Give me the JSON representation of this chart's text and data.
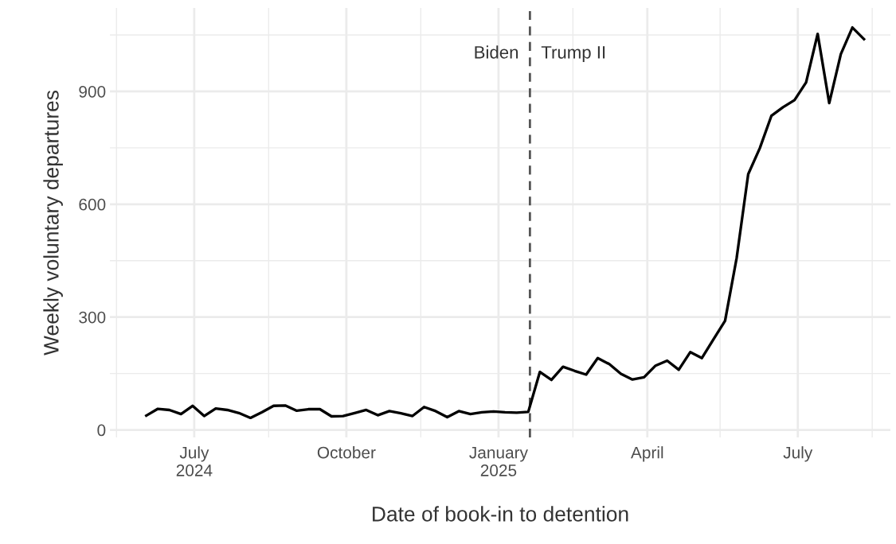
{
  "chart_data": {
    "type": "line",
    "xlabel": "Date of book-in to detention",
    "ylabel": "Weekly voluntary departures",
    "x": [
      "2024-06-02",
      "2024-06-09",
      "2024-06-16",
      "2024-06-23",
      "2024-06-30",
      "2024-07-07",
      "2024-07-14",
      "2024-07-21",
      "2024-07-28",
      "2024-08-04",
      "2024-08-11",
      "2024-08-18",
      "2024-08-25",
      "2024-09-01",
      "2024-09-08",
      "2024-09-15",
      "2024-09-22",
      "2024-09-29",
      "2024-10-06",
      "2024-10-13",
      "2024-10-20",
      "2024-10-27",
      "2024-11-03",
      "2024-11-10",
      "2024-11-17",
      "2024-11-24",
      "2024-12-01",
      "2024-12-08",
      "2024-12-15",
      "2024-12-22",
      "2024-12-29",
      "2025-01-05",
      "2025-01-12",
      "2025-01-19",
      "2025-01-26",
      "2025-02-02",
      "2025-02-09",
      "2025-02-16",
      "2025-02-23",
      "2025-03-02",
      "2025-03-09",
      "2025-03-16",
      "2025-03-23",
      "2025-03-30",
      "2025-04-06",
      "2025-04-13",
      "2025-04-20",
      "2025-04-27",
      "2025-05-04",
      "2025-05-11",
      "2025-05-18",
      "2025-05-25",
      "2025-06-01",
      "2025-06-08",
      "2025-06-15",
      "2025-06-22",
      "2025-06-29",
      "2025-07-06",
      "2025-07-13",
      "2025-07-20",
      "2025-07-27",
      "2025-08-03",
      "2025-08-10"
    ],
    "series": [
      {
        "color": "#000000",
        "values": [
          38,
          56,
          53,
          42,
          64,
          37,
          57,
          53,
          45,
          32,
          47,
          64,
          65,
          51,
          55,
          55,
          36,
          37,
          45,
          53,
          39,
          50,
          44,
          37,
          61,
          50,
          34,
          50,
          42,
          47,
          49,
          47,
          46,
          48,
          154,
          133,
          168,
          157,
          147,
          191,
          175,
          149,
          134,
          140,
          171,
          184,
          160,
          207,
          191,
          241,
          290,
          457,
          680,
          749,
          835,
          858,
          877,
          924,
          1053,
          869,
          999,
          1070,
          1039
        ]
      }
    ],
    "xlim": [
      "2024-05-11",
      "2025-08-26"
    ],
    "xticks": [
      {
        "value": "2024-05-15",
        "label": null
      },
      {
        "value": "2024-07-01",
        "label": "July\n2024"
      },
      {
        "value": "2024-08-15",
        "label": null
      },
      {
        "value": "2024-10-01",
        "label": "October"
      },
      {
        "value": "2024-11-15",
        "label": null
      },
      {
        "value": "2025-01-01",
        "label": "January\n2025"
      },
      {
        "value": "2025-02-15",
        "label": null
      },
      {
        "value": "2025-04-01",
        "label": "April"
      },
      {
        "value": "2025-05-15",
        "label": null
      },
      {
        "value": "2025-07-01",
        "label": "July"
      },
      {
        "value": "2025-08-15",
        "label": null
      }
    ],
    "ylim": [
      -20,
      1122
    ],
    "yticks": [
      0,
      {
        "value": 150,
        "label": null
      },
      300,
      {
        "value": 450,
        "label": null
      },
      600,
      {
        "value": 750,
        "label": null
      },
      900,
      {
        "value": 1050,
        "label": null
      }
    ],
    "grid": true,
    "line_style": "solid",
    "marker": "none",
    "ref_lines": [
      {
        "axis": "x",
        "value": "2025-01-20",
        "color": "#555555",
        "line_style": "dashed"
      }
    ],
    "annotations": [
      {
        "text": "Biden",
        "x": "2025-01-20",
        "y": 1000
      },
      {
        "text": "Trump II",
        "x": "2025-01-20",
        "y": 1000
      }
    ]
  }
}
